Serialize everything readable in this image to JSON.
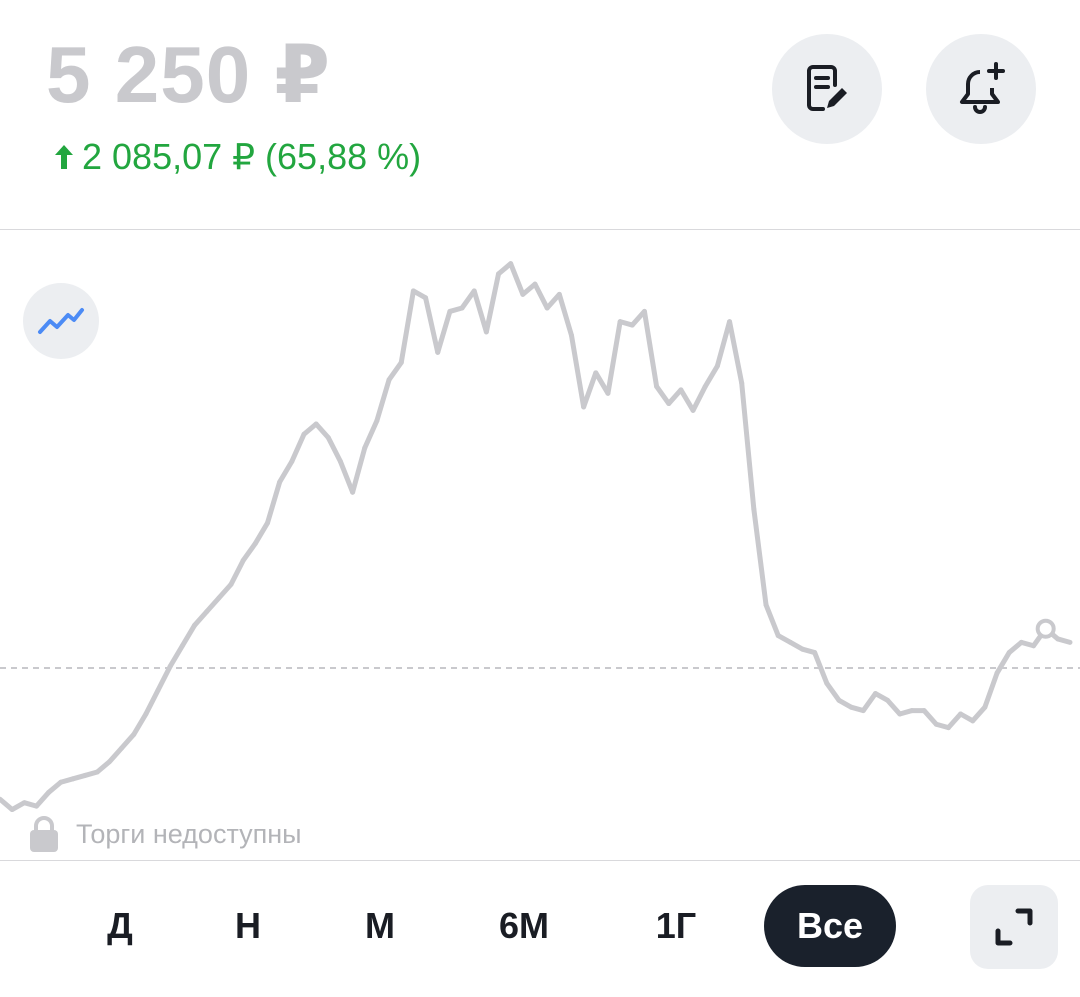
{
  "quote": {
    "price": "5 250 ₽",
    "change": "2 085,07 ₽ (65,88 %)",
    "change_color": "#22a63f",
    "change_direction_icon": "arrow-up-icon"
  },
  "actions": {
    "notes_icon": "note-edit-icon",
    "alert_icon": "bell-plus-icon"
  },
  "chart": {
    "type_toggle_icon": "line-chart-icon",
    "status_icon": "lock-icon",
    "status_text": "Торги недоступны",
    "line_color": "#c9c9cd",
    "marker_color": "#c9c9cd"
  },
  "chart_data": {
    "type": "line",
    "title": "",
    "xlabel": "",
    "ylabel": "",
    "grid": false,
    "reference_line": "dashed horizontal at the current price level",
    "series": [
      {
        "values": [
          2950,
          2800,
          2900,
          2850,
          3050,
          3200,
          3250,
          3300,
          3350,
          3500,
          3700,
          3900,
          4200,
          4550,
          4900,
          5200,
          5500,
          5700,
          5900,
          6100,
          6450,
          6700,
          7000,
          7600,
          7900,
          8300,
          8450,
          8250,
          7900,
          7450,
          8100,
          8500,
          9100,
          9350,
          10400,
          10300,
          9500,
          10100,
          10150,
          10400,
          9800,
          10650,
          10800,
          10350,
          10500,
          10150,
          10350,
          9750,
          8700,
          9200,
          8900,
          9950,
          9900,
          10100,
          9000,
          8750,
          8950,
          8650,
          9000,
          9300,
          9950,
          9050,
          7200,
          5800,
          5350,
          5250,
          5150,
          5100,
          4650,
          4400,
          4300,
          4250,
          4500,
          4400,
          4200,
          4250,
          4250,
          4050,
          4000,
          4200,
          4100,
          4300,
          4800,
          5100,
          5250,
          5200,
          5450,
          5300,
          5250
        ]
      }
    ],
    "last_value": 5250
  },
  "periods": {
    "items": [
      "Д",
      "Н",
      "М",
      "6М",
      "1Г",
      "Все"
    ],
    "active": "Все",
    "expand_icon": "expand-icon"
  }
}
